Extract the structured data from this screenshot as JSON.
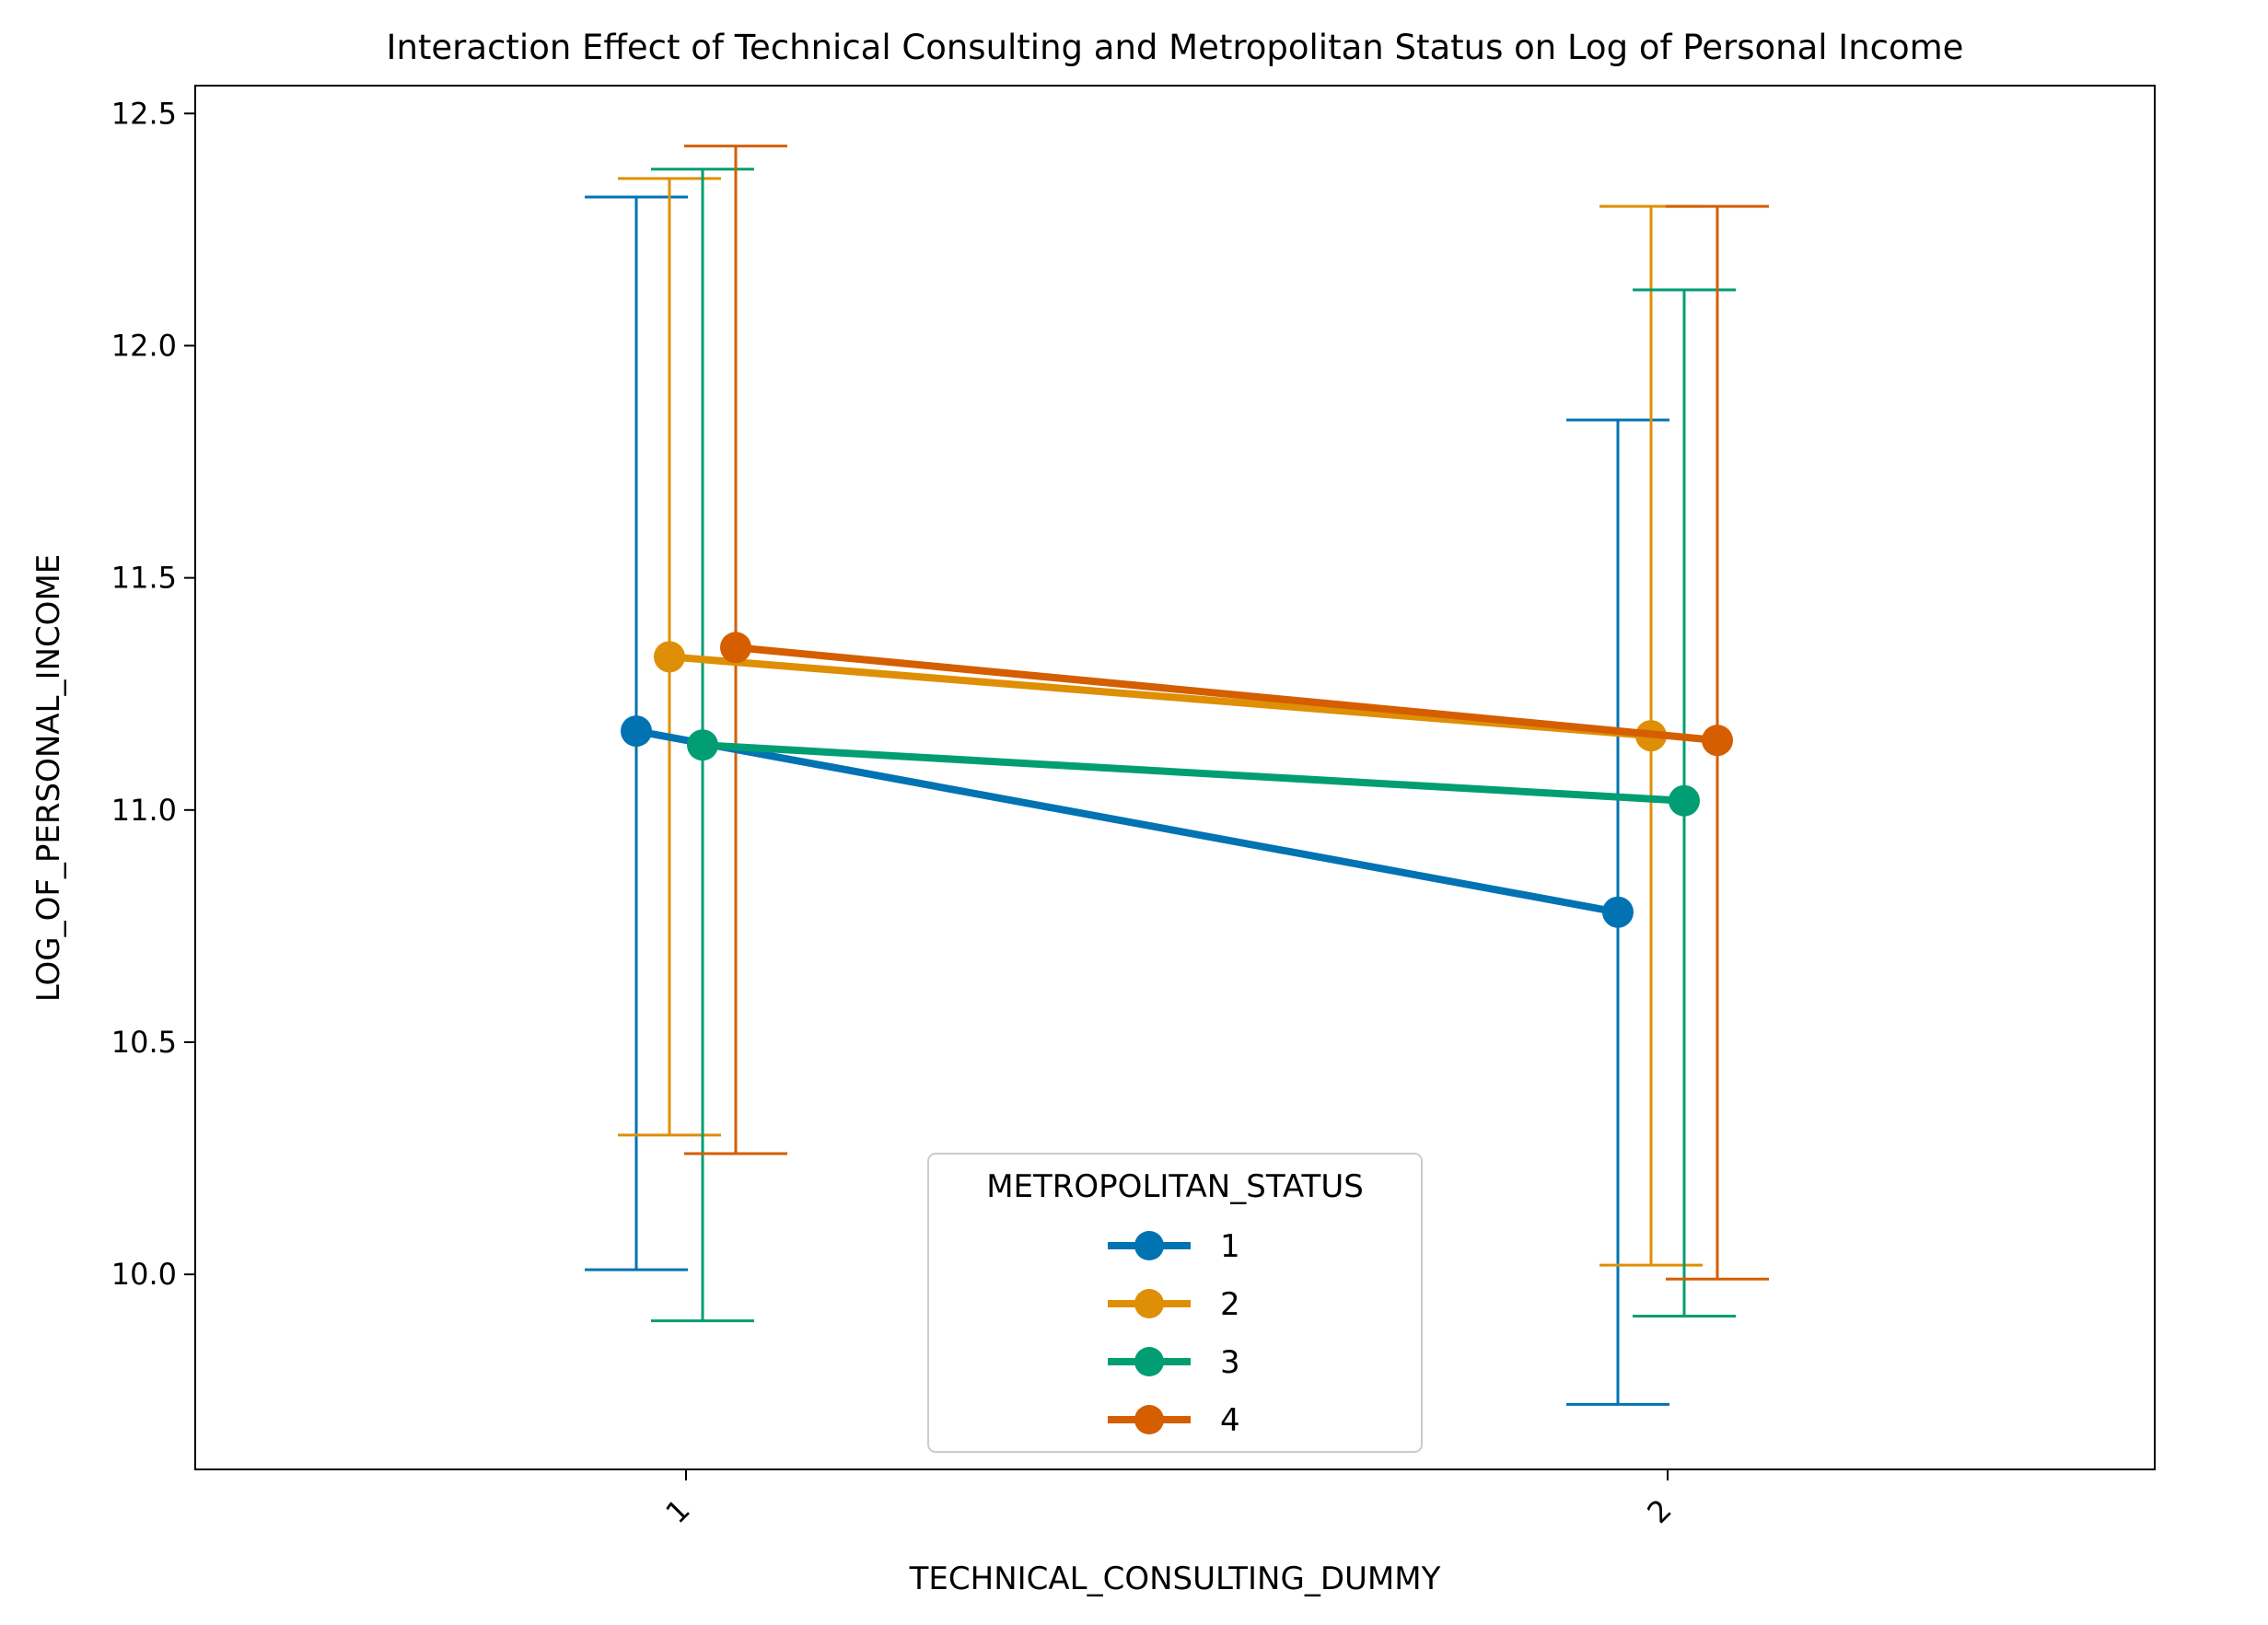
{
  "chart_data": {
    "type": "line",
    "title": "Interaction Effect of Technical Consulting and Metropolitan Status on Log of Personal Income",
    "xlabel": "TECHNICAL_CONSULTING_DUMMY",
    "ylabel": "LOG_OF_PERSONAL_INCOME",
    "categories": [
      "1",
      "2"
    ],
    "yticks": [
      "10.0",
      "10.5",
      "11.0",
      "11.5",
      "12.0",
      "12.5"
    ],
    "ytick_values": [
      10.0,
      10.5,
      11.0,
      11.5,
      12.0,
      12.5
    ],
    "ylim": [
      9.58,
      12.56
    ],
    "grid": false,
    "legend": {
      "title": "METROPOLITAN_STATUS",
      "placement": "lower-center"
    },
    "series": [
      {
        "name": "1",
        "color": "#0173b2",
        "values": [
          11.17,
          10.78
        ],
        "ci_low": [
          10.01,
          9.72
        ],
        "ci_high": [
          12.32,
          11.84
        ]
      },
      {
        "name": "2",
        "color": "#de8f05",
        "values": [
          11.33,
          11.16
        ],
        "ci_low": [
          10.3,
          10.02
        ],
        "ci_high": [
          12.36,
          12.3
        ]
      },
      {
        "name": "3",
        "color": "#029e73",
        "values": [
          11.14,
          11.02
        ],
        "ci_low": [
          9.9,
          9.91
        ],
        "ci_high": [
          12.38,
          12.12
        ]
      },
      {
        "name": "4",
        "color": "#d55e00",
        "values": [
          11.35,
          11.15
        ],
        "ci_low": [
          10.26,
          9.99
        ],
        "ci_high": [
          12.43,
          12.3
        ]
      }
    ]
  }
}
